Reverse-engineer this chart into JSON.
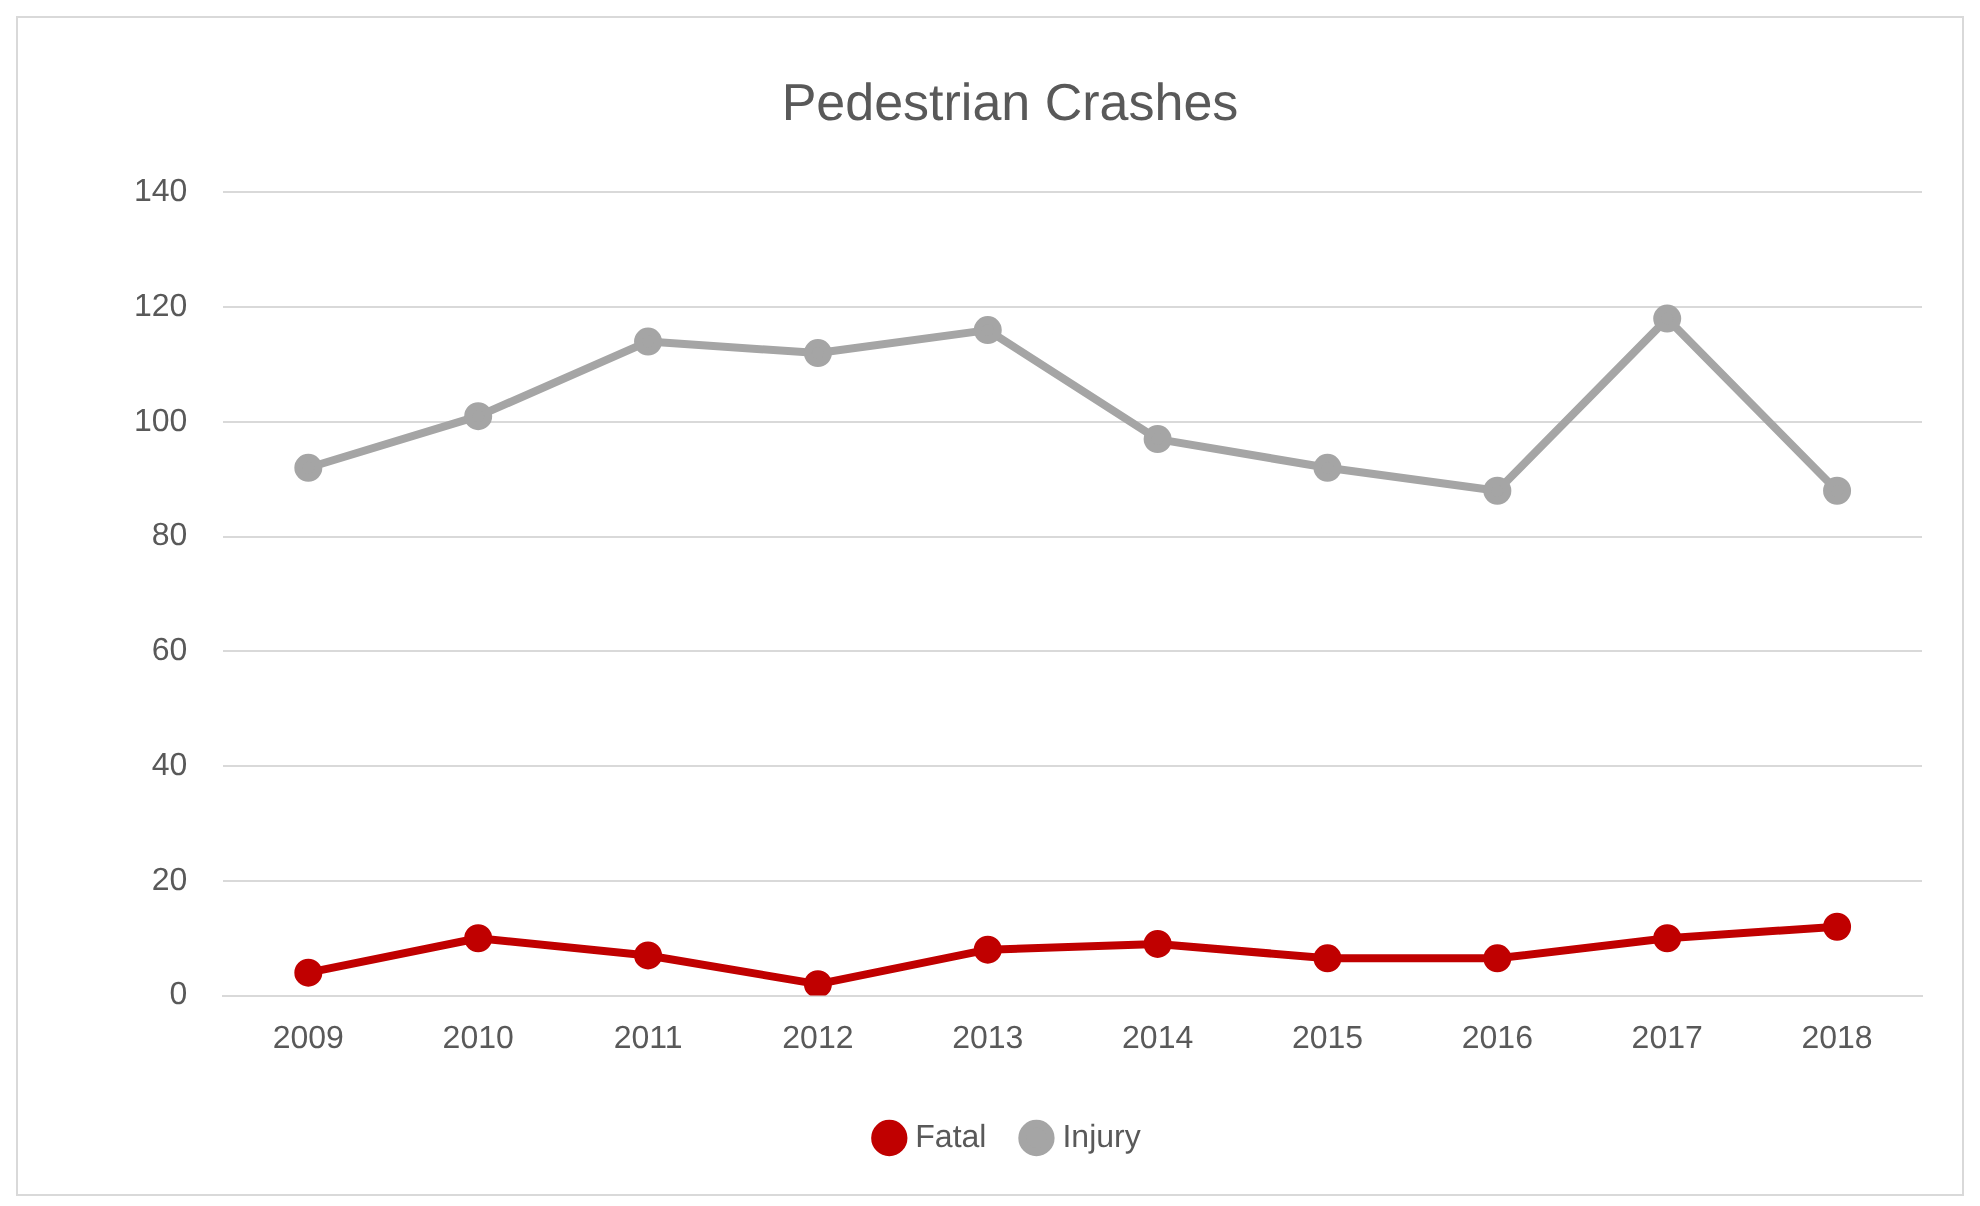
{
  "chart_data": {
    "type": "line",
    "title": "Pedestrian Crashes",
    "categories": [
      "2009",
      "2010",
      "2011",
      "2012",
      "2013",
      "2014",
      "2015",
      "2016",
      "2017",
      "2018"
    ],
    "series": [
      {
        "name": "Fatal",
        "color": "#c00000",
        "values": [
          4,
          10,
          7,
          2,
          8,
          9,
          6.5,
          6.5,
          10,
          12
        ]
      },
      {
        "name": "Injury",
        "color": "#a5a5a5",
        "values": [
          92,
          101,
          114,
          112,
          116,
          97,
          92,
          88,
          118,
          88
        ]
      }
    ],
    "ylim": [
      0,
      140
    ],
    "yticks": [
      0,
      20,
      40,
      60,
      80,
      100,
      120,
      140
    ],
    "grid": "y",
    "legend": "bottom",
    "marker": "circle",
    "line_style": "solid"
  }
}
